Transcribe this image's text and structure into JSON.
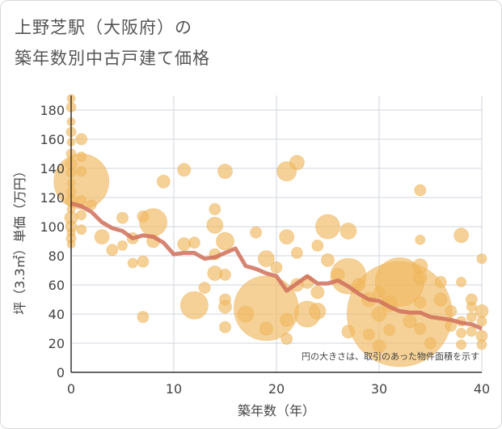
{
  "title_line1": "上野芝駅（大阪府）の",
  "title_line2": "築年数別中古戸建て価格",
  "chart_data": {
    "type": "scatter",
    "xlabel": "築年数（年）",
    "ylabel": "坪（3.3㎡）単価（万円）",
    "xlim": [
      0,
      40
    ],
    "ylim": [
      0,
      190
    ],
    "x_ticks": [
      0,
      10,
      20,
      30,
      40
    ],
    "y_ticks": [
      0,
      20,
      40,
      60,
      80,
      100,
      120,
      140,
      160,
      180
    ],
    "grid": true,
    "annotation": "円の大きさは、取引のあった物件面積を示す",
    "colors": {
      "bubble": "#f0b860",
      "line": "#d0705a",
      "grid": "#d0d6dc"
    },
    "bubbles": [
      {
        "x": 0,
        "y": 188,
        "s": 5
      },
      {
        "x": 0,
        "y": 182,
        "s": 6
      },
      {
        "x": 0,
        "y": 172,
        "s": 5
      },
      {
        "x": 0,
        "y": 165,
        "s": 6
      },
      {
        "x": 0,
        "y": 158,
        "s": 5
      },
      {
        "x": 0,
        "y": 150,
        "s": 6
      },
      {
        "x": 0,
        "y": 143,
        "s": 7
      },
      {
        "x": 0,
        "y": 137,
        "s": 6
      },
      {
        "x": 0,
        "y": 130,
        "s": 5
      },
      {
        "x": 0,
        "y": 124,
        "s": 6
      },
      {
        "x": 0,
        "y": 118,
        "s": 7
      },
      {
        "x": 0,
        "y": 112,
        "s": 5
      },
      {
        "x": 0,
        "y": 106,
        "s": 8
      },
      {
        "x": 0,
        "y": 100,
        "s": 7
      },
      {
        "x": 0,
        "y": 96,
        "s": 5
      },
      {
        "x": 0,
        "y": 92,
        "s": 6
      },
      {
        "x": 0,
        "y": 88,
        "s": 5
      },
      {
        "x": 1,
        "y": 131,
        "s": 34
      },
      {
        "x": 1,
        "y": 160,
        "s": 7
      },
      {
        "x": 1,
        "y": 148,
        "s": 6
      },
      {
        "x": 1,
        "y": 138,
        "s": 6
      },
      {
        "x": 1,
        "y": 118,
        "s": 6
      },
      {
        "x": 1,
        "y": 108,
        "s": 6
      },
      {
        "x": 1,
        "y": 98,
        "s": 6
      },
      {
        "x": 2,
        "y": 115,
        "s": 6
      },
      {
        "x": 3,
        "y": 93,
        "s": 9
      },
      {
        "x": 4,
        "y": 84,
        "s": 7
      },
      {
        "x": 5,
        "y": 106,
        "s": 7
      },
      {
        "x": 5,
        "y": 87,
        "s": 6
      },
      {
        "x": 6,
        "y": 92,
        "s": 7
      },
      {
        "x": 6,
        "y": 75,
        "s": 6
      },
      {
        "x": 7,
        "y": 107,
        "s": 7
      },
      {
        "x": 7,
        "y": 76,
        "s": 7
      },
      {
        "x": 7,
        "y": 38,
        "s": 7
      },
      {
        "x": 8,
        "y": 103,
        "s": 17
      },
      {
        "x": 8,
        "y": 90,
        "s": 8
      },
      {
        "x": 9,
        "y": 131,
        "s": 8
      },
      {
        "x": 11,
        "y": 139,
        "s": 8
      },
      {
        "x": 11,
        "y": 88,
        "s": 8
      },
      {
        "x": 12,
        "y": 46,
        "s": 17
      },
      {
        "x": 12,
        "y": 89,
        "s": 7
      },
      {
        "x": 13,
        "y": 58,
        "s": 7
      },
      {
        "x": 14,
        "y": 112,
        "s": 7
      },
      {
        "x": 14,
        "y": 101,
        "s": 10
      },
      {
        "x": 14,
        "y": 68,
        "s": 9
      },
      {
        "x": 14,
        "y": 81,
        "s": 7
      },
      {
        "x": 15,
        "y": 138,
        "s": 9
      },
      {
        "x": 15,
        "y": 90,
        "s": 11
      },
      {
        "x": 15,
        "y": 67,
        "s": 7
      },
      {
        "x": 15,
        "y": 50,
        "s": 7
      },
      {
        "x": 15,
        "y": 45,
        "s": 8
      },
      {
        "x": 15,
        "y": 31,
        "s": 7
      },
      {
        "x": 17,
        "y": 40,
        "s": 10
      },
      {
        "x": 18,
        "y": 96,
        "s": 7
      },
      {
        "x": 19,
        "y": 44,
        "s": 40
      },
      {
        "x": 19,
        "y": 78,
        "s": 10
      },
      {
        "x": 19,
        "y": 30,
        "s": 8
      },
      {
        "x": 20,
        "y": 72,
        "s": 7
      },
      {
        "x": 21,
        "y": 138,
        "s": 12
      },
      {
        "x": 21,
        "y": 93,
        "s": 9
      },
      {
        "x": 21,
        "y": 36,
        "s": 8
      },
      {
        "x": 21,
        "y": 23,
        "s": 7
      },
      {
        "x": 22,
        "y": 144,
        "s": 9
      },
      {
        "x": 22,
        "y": 60,
        "s": 8
      },
      {
        "x": 22,
        "y": 82,
        "s": 7
      },
      {
        "x": 23,
        "y": 40,
        "s": 16
      },
      {
        "x": 23,
        "y": 62,
        "s": 8
      },
      {
        "x": 24,
        "y": 42,
        "s": 10
      },
      {
        "x": 24,
        "y": 55,
        "s": 8
      },
      {
        "x": 24,
        "y": 87,
        "s": 7
      },
      {
        "x": 25,
        "y": 100,
        "s": 15
      },
      {
        "x": 25,
        "y": 77,
        "s": 8
      },
      {
        "x": 26,
        "y": 67,
        "s": 8
      },
      {
        "x": 27,
        "y": 97,
        "s": 10
      },
      {
        "x": 27,
        "y": 66,
        "s": 22
      },
      {
        "x": 27,
        "y": 28,
        "s": 8
      },
      {
        "x": 28,
        "y": 60,
        "s": 8
      },
      {
        "x": 29,
        "y": 50,
        "s": 9
      },
      {
        "x": 29,
        "y": 26,
        "s": 7
      },
      {
        "x": 30,
        "y": 40,
        "s": 9
      },
      {
        "x": 30,
        "y": 18,
        "s": 8
      },
      {
        "x": 30,
        "y": 55,
        "s": 7
      },
      {
        "x": 31,
        "y": 47,
        "s": 10
      },
      {
        "x": 31,
        "y": 29,
        "s": 7
      },
      {
        "x": 32,
        "y": 40,
        "s": 65
      },
      {
        "x": 32,
        "y": 62,
        "s": 30
      },
      {
        "x": 33,
        "y": 35,
        "s": 8
      },
      {
        "x": 34,
        "y": 125,
        "s": 7
      },
      {
        "x": 34,
        "y": 91,
        "s": 6
      },
      {
        "x": 34,
        "y": 73,
        "s": 9
      },
      {
        "x": 34,
        "y": 65,
        "s": 8
      },
      {
        "x": 34,
        "y": 48,
        "s": 7
      },
      {
        "x": 34,
        "y": 30,
        "s": 7
      },
      {
        "x": 35,
        "y": 20,
        "s": 7
      },
      {
        "x": 36,
        "y": 50,
        "s": 8
      },
      {
        "x": 36,
        "y": 62,
        "s": 7
      },
      {
        "x": 37,
        "y": 42,
        "s": 7
      },
      {
        "x": 37,
        "y": 32,
        "s": 7
      },
      {
        "x": 38,
        "y": 94,
        "s": 9
      },
      {
        "x": 38,
        "y": 62,
        "s": 6
      },
      {
        "x": 38,
        "y": 35,
        "s": 6
      },
      {
        "x": 38,
        "y": 27,
        "s": 6
      },
      {
        "x": 38,
        "y": 19,
        "s": 6
      },
      {
        "x": 39,
        "y": 50,
        "s": 7
      },
      {
        "x": 39,
        "y": 45,
        "s": 6
      },
      {
        "x": 39,
        "y": 38,
        "s": 6
      },
      {
        "x": 39,
        "y": 28,
        "s": 6
      },
      {
        "x": 40,
        "y": 78,
        "s": 6
      },
      {
        "x": 40,
        "y": 42,
        "s": 8
      },
      {
        "x": 40,
        "y": 35,
        "s": 6
      },
      {
        "x": 40,
        "y": 25,
        "s": 7
      },
      {
        "x": 40,
        "y": 19,
        "s": 6
      }
    ],
    "trend": [
      {
        "x": 0,
        "y": 116
      },
      {
        "x": 1,
        "y": 114
      },
      {
        "x": 2,
        "y": 110
      },
      {
        "x": 3,
        "y": 103
      },
      {
        "x": 4,
        "y": 99
      },
      {
        "x": 5,
        "y": 97
      },
      {
        "x": 6,
        "y": 92
      },
      {
        "x": 7,
        "y": 94
      },
      {
        "x": 8,
        "y": 93
      },
      {
        "x": 9,
        "y": 89
      },
      {
        "x": 10,
        "y": 81
      },
      {
        "x": 11,
        "y": 82
      },
      {
        "x": 12,
        "y": 82
      },
      {
        "x": 13,
        "y": 78
      },
      {
        "x": 14,
        "y": 79
      },
      {
        "x": 15,
        "y": 82
      },
      {
        "x": 16,
        "y": 85
      },
      {
        "x": 17,
        "y": 73
      },
      {
        "x": 18,
        "y": 71
      },
      {
        "x": 19,
        "y": 68
      },
      {
        "x": 20,
        "y": 66
      },
      {
        "x": 21,
        "y": 56
      },
      {
        "x": 22,
        "y": 61
      },
      {
        "x": 23,
        "y": 66
      },
      {
        "x": 24,
        "y": 61
      },
      {
        "x": 25,
        "y": 61
      },
      {
        "x": 26,
        "y": 63
      },
      {
        "x": 27,
        "y": 59
      },
      {
        "x": 28,
        "y": 54
      },
      {
        "x": 29,
        "y": 50
      },
      {
        "x": 30,
        "y": 49
      },
      {
        "x": 31,
        "y": 45
      },
      {
        "x": 32,
        "y": 42
      },
      {
        "x": 33,
        "y": 41
      },
      {
        "x": 34,
        "y": 41
      },
      {
        "x": 35,
        "y": 38
      },
      {
        "x": 36,
        "y": 37
      },
      {
        "x": 37,
        "y": 36
      },
      {
        "x": 38,
        "y": 34
      },
      {
        "x": 39,
        "y": 33
      },
      {
        "x": 40,
        "y": 30
      }
    ]
  }
}
